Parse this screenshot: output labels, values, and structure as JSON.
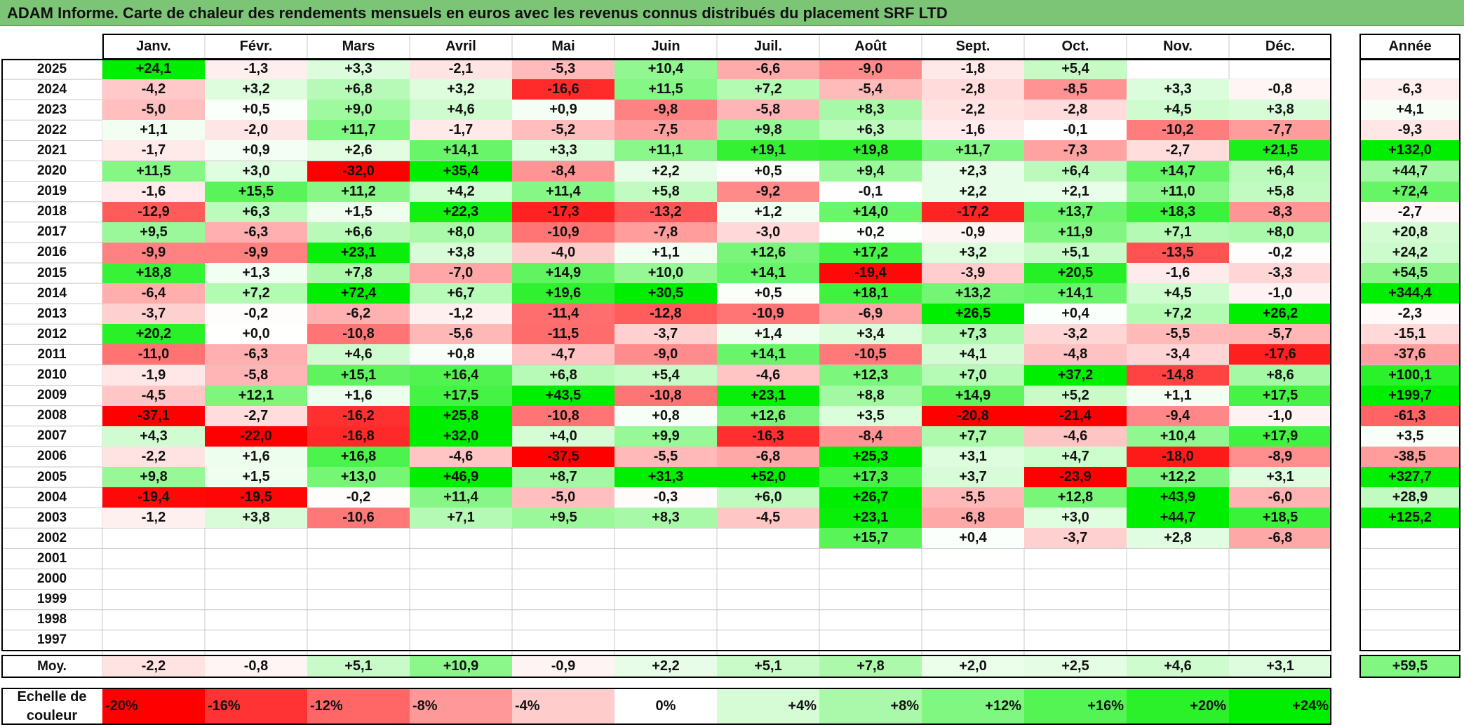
{
  "title": "ADAM Informe. Carte de chaleur des rendements mensuels en euros avec les revenus connus distribués du placement SRF LTD",
  "chart_data": {
    "type": "heatmap",
    "months": [
      "Janv.",
      "Févr.",
      "Mars",
      "Avril",
      "Mai",
      "Juin",
      "Juil.",
      "Août",
      "Sept.",
      "Oct.",
      "Nov.",
      "Déc."
    ],
    "annual_header": "Année",
    "rows": [
      {
        "year": "2025",
        "values": [
          "+24,1",
          "-1,3",
          "+3,3",
          "-2,1",
          "-5,3",
          "+10,4",
          "-6,6",
          "-9,0",
          "-1,8",
          "+5,4",
          "",
          ""
        ],
        "annual": ""
      },
      {
        "year": "2024",
        "values": [
          "-4,2",
          "+3,2",
          "+6,8",
          "+3,2",
          "-16,6",
          "+11,5",
          "+7,2",
          "-5,4",
          "-2,8",
          "-8,5",
          "+3,3",
          "-0,8"
        ],
        "annual": "-6,3"
      },
      {
        "year": "2023",
        "values": [
          "-5,0",
          "+0,5",
          "+9,0",
          "+4,6",
          "+0,9",
          "-9,8",
          "-5,8",
          "+8,3",
          "-2,2",
          "-2,8",
          "+4,5",
          "+3,8"
        ],
        "annual": "+4,1"
      },
      {
        "year": "2022",
        "values": [
          "+1,1",
          "-2,0",
          "+11,7",
          "-1,7",
          "-5,2",
          "-7,5",
          "+9,8",
          "+6,3",
          "-1,6",
          "-0,1",
          "-10,2",
          "-7,7"
        ],
        "annual": "-9,3"
      },
      {
        "year": "2021",
        "values": [
          "-1,7",
          "+0,9",
          "+2,6",
          "+14,1",
          "+3,3",
          "+11,1",
          "+19,1",
          "+19,8",
          "+11,7",
          "-7,3",
          "-2,7",
          "+21,5"
        ],
        "annual": "+132,0"
      },
      {
        "year": "2020",
        "values": [
          "+11,5",
          "+3,0",
          "-32,0",
          "+35,4",
          "-8,4",
          "+2,2",
          "+0,5",
          "+9,4",
          "+2,3",
          "+6,4",
          "+14,7",
          "+6,4"
        ],
        "annual": "+44,7"
      },
      {
        "year": "2019",
        "values": [
          "-1,6",
          "+15,5",
          "+11,2",
          "+4,2",
          "+11,4",
          "+5,8",
          "-9,2",
          "-0,1",
          "+2,2",
          "+2,1",
          "+11,0",
          "+5,8"
        ],
        "annual": "+72,4"
      },
      {
        "year": "2018",
        "values": [
          "-12,9",
          "+6,3",
          "+1,5",
          "+22,3",
          "-17,3",
          "-13,2",
          "+1,2",
          "+14,0",
          "-17,2",
          "+13,7",
          "+18,3",
          "-8,3"
        ],
        "annual": "-2,7"
      },
      {
        "year": "2017",
        "values": [
          "+9,5",
          "-6,3",
          "+6,6",
          "+8,0",
          "-10,9",
          "-7,8",
          "-3,0",
          "+0,2",
          "-0,9",
          "+11,9",
          "+7,1",
          "+8,0"
        ],
        "annual": "+20,8"
      },
      {
        "year": "2016",
        "values": [
          "-9,9",
          "-9,9",
          "+23,1",
          "+3,8",
          "-4,0",
          "+1,1",
          "+12,6",
          "+17,2",
          "+3,2",
          "+5,1",
          "-13,5",
          "-0,2"
        ],
        "annual": "+24,2"
      },
      {
        "year": "2015",
        "values": [
          "+18,8",
          "+1,3",
          "+7,8",
          "-7,0",
          "+14,9",
          "+10,0",
          "+14,1",
          "-19,4",
          "-3,9",
          "+20,5",
          "-1,6",
          "-3,3"
        ],
        "annual": "+54,5"
      },
      {
        "year": "2014",
        "values": [
          "-6,4",
          "+7,2",
          "+72,4",
          "+6,7",
          "+19,6",
          "+30,5",
          "+0,5",
          "+18,1",
          "+13,2",
          "+14,1",
          "+4,5",
          "-1,0"
        ],
        "annual": "+344,4"
      },
      {
        "year": "2013",
        "values": [
          "-3,7",
          "-0,2",
          "-6,2",
          "-1,2",
          "-11,4",
          "-12,8",
          "-10,9",
          "-6,9",
          "+26,5",
          "+0,4",
          "+7,2",
          "+26,2"
        ],
        "annual": "-2,3"
      },
      {
        "year": "2012",
        "values": [
          "+20,2",
          "+0,0",
          "-10,8",
          "-5,6",
          "-11,5",
          "-3,7",
          "+1,4",
          "+3,4",
          "+7,3",
          "-3,2",
          "-5,5",
          "-5,7"
        ],
        "annual": "-15,1"
      },
      {
        "year": "2011",
        "values": [
          "-11,0",
          "-6,3",
          "+4,6",
          "+0,8",
          "-4,7",
          "-9,0",
          "+14,1",
          "-10,5",
          "+4,1",
          "-4,8",
          "-3,4",
          "-17,6"
        ],
        "annual": "-37,6"
      },
      {
        "year": "2010",
        "values": [
          "-1,9",
          "-5,8",
          "+15,1",
          "+16,4",
          "+6,8",
          "+5,4",
          "-4,6",
          "+12,3",
          "+7,0",
          "+37,2",
          "-14,8",
          "+8,6"
        ],
        "annual": "+100,1"
      },
      {
        "year": "2009",
        "values": [
          "-4,5",
          "+12,1",
          "+1,6",
          "+17,5",
          "+43,5",
          "-10,8",
          "+23,1",
          "+8,8",
          "+14,9",
          "+5,2",
          "+1,1",
          "+17,5"
        ],
        "annual": "+199,7"
      },
      {
        "year": "2008",
        "values": [
          "-37,1",
          "-2,7",
          "-16,2",
          "+25,8",
          "-10,8",
          "+0,8",
          "+12,6",
          "+3,5",
          "-20,8",
          "-21,4",
          "-9,4",
          "-1,0"
        ],
        "annual": "-61,3"
      },
      {
        "year": "2007",
        "values": [
          "+4,3",
          "-22,0",
          "-16,8",
          "+32,0",
          "+4,0",
          "+9,9",
          "-16,3",
          "-8,4",
          "+7,7",
          "-4,6",
          "+10,4",
          "+17,9"
        ],
        "annual": "+3,5"
      },
      {
        "year": "2006",
        "values": [
          "-2,2",
          "+1,6",
          "+16,8",
          "-4,6",
          "-37,5",
          "-5,5",
          "-6,8",
          "+25,3",
          "+3,1",
          "+4,7",
          "-18,0",
          "-8,9"
        ],
        "annual": "-38,5"
      },
      {
        "year": "2005",
        "values": [
          "+9,8",
          "+1,5",
          "+13,0",
          "+46,9",
          "+8,7",
          "+31,3",
          "+52,0",
          "+17,3",
          "+3,7",
          "-23,9",
          "+12,2",
          "+3,1"
        ],
        "annual": "+327,7"
      },
      {
        "year": "2004",
        "values": [
          "-19,4",
          "-19,5",
          "-0,2",
          "+11,4",
          "-5,0",
          "-0,3",
          "+6,0",
          "+26,7",
          "-5,5",
          "+12,8",
          "+43,9",
          "-6,0"
        ],
        "annual": "+28,9"
      },
      {
        "year": "2003",
        "values": [
          "-1,2",
          "+3,8",
          "-10,6",
          "+7,1",
          "+9,5",
          "+8,3",
          "-4,5",
          "+23,1",
          "-6,8",
          "+3,0",
          "+44,7",
          "+18,5"
        ],
        "annual": "+125,2"
      },
      {
        "year": "2002",
        "values": [
          "",
          "",
          "",
          "",
          "",
          "",
          "",
          "+15,7",
          "+0,4",
          "-3,7",
          "+2,8",
          "-6,8"
        ],
        "annual": ""
      },
      {
        "year": "2001",
        "values": [
          "",
          "",
          "",
          "",
          "",
          "",
          "",
          "",
          "",
          "",
          "",
          ""
        ],
        "annual": ""
      },
      {
        "year": "2000",
        "values": [
          "",
          "",
          "",
          "",
          "",
          "",
          "",
          "",
          "",
          "",
          "",
          ""
        ],
        "annual": ""
      },
      {
        "year": "1999",
        "values": [
          "",
          "",
          "",
          "",
          "",
          "",
          "",
          "",
          "",
          "",
          "",
          ""
        ],
        "annual": ""
      },
      {
        "year": "1998",
        "values": [
          "",
          "",
          "",
          "",
          "",
          "",
          "",
          "",
          "",
          "",
          "",
          ""
        ],
        "annual": ""
      },
      {
        "year": "1997",
        "values": [
          "",
          "",
          "",
          "",
          "",
          "",
          "",
          "",
          "",
          "",
          "",
          ""
        ],
        "annual": ""
      }
    ],
    "average": {
      "label": "Moy.",
      "values": [
        "-2,2",
        "-0,8",
        "+5,1",
        "+10,9",
        "-0,9",
        "+2,2",
        "+5,1",
        "+7,8",
        "+2,0",
        "+2,5",
        "+4,6",
        "+3,1"
      ],
      "annual": "+59,5"
    },
    "scale": {
      "label": "Echelle de couleur",
      "stops": [
        "-20%",
        "-16%",
        "-12%",
        "-8%",
        "-4%",
        "0%",
        "+4%",
        "+8%",
        "+12%",
        "+16%",
        "+20%",
        "+24%"
      ],
      "stop_values": [
        -20,
        -16,
        -12,
        -8,
        -4,
        0,
        4,
        8,
        12,
        16,
        20,
        24
      ]
    },
    "colors": {
      "negative": "#ff0000",
      "neutral": "#ffffff",
      "positive": "#00ee00",
      "title_bar": "#7cc576"
    }
  }
}
